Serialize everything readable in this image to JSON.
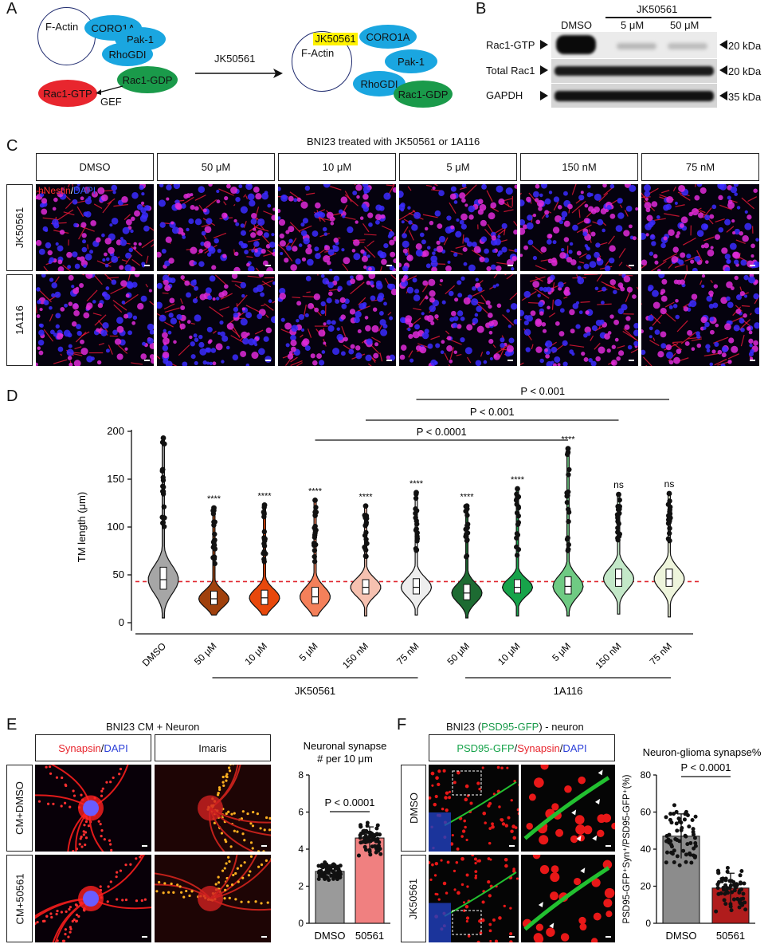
{
  "panelA": {
    "label": "A",
    "left": {
      "factin": "F-Actin",
      "coro1a": "CORO1A",
      "pak1": "Pak-1",
      "rhogdi": "RhoGDI",
      "rac1gdp": "Rac1-GDP",
      "rac1gtp": "Rac1-GTP",
      "gef": "GEF"
    },
    "arrow_label": "JK50561",
    "right": {
      "compound": "JK50561",
      "factin": "F-Actin",
      "coro1a": "CORO1A",
      "pak1": "Pak-1",
      "rhogdi": "RhoGDI",
      "rac1gdp": "Rac1-GDP"
    },
    "colors": {
      "blue": "#1aa6e0",
      "green": "#1a9a4a",
      "red": "#e8262e",
      "yellow": "#fff200",
      "navy": "#1e2a6e"
    }
  },
  "panelB": {
    "label": "B",
    "treatment": "JK50561",
    "lanes": [
      "DMSO",
      "5 μM",
      "50 μM"
    ],
    "rows": [
      {
        "name": "Rac1-GTP",
        "kda": "20 kDa"
      },
      {
        "name": "Total Rac1",
        "kda": "20 kDa"
      },
      {
        "name": "GAPDH",
        "kda": "35 kDa"
      }
    ]
  },
  "panelC": {
    "label": "C",
    "title": "BNI23 treated with JK50561 or 1A116",
    "columns": [
      "DMSO",
      "50 μM",
      "10 μM",
      "5 μM",
      "150 nM",
      "75 nM"
    ],
    "rows": [
      "JK50561",
      "1A116"
    ],
    "stain_red": "hNestin",
    "stain_sep": "/",
    "stain_blue": "DAPI"
  },
  "panelD": {
    "label": "D",
    "chart_data": {
      "type": "violin",
      "ylabel": "TM length (μm)",
      "ylim": [
        0,
        200
      ],
      "yticks": [
        0,
        50,
        100,
        150,
        200
      ],
      "threshold_line": 43,
      "categories": [
        "DMSO",
        "50 μM",
        "10 μM",
        "5 μM",
        "150 nM",
        "75 nM",
        "50 μM",
        "10 μM",
        "5 μM",
        "150 nM",
        "75 nM"
      ],
      "groups": [
        {
          "name": "JK50561",
          "from": 1,
          "to": 5
        },
        {
          "name": "1A116",
          "from": 6,
          "to": 10
        }
      ],
      "series": [
        {
          "category": "DMSO",
          "median": 45,
          "q1": 35,
          "q3": 58,
          "min": 5,
          "max": 193,
          "color": "#a6a6a6",
          "sig": ""
        },
        {
          "category": "50 μM",
          "median": 25,
          "q1": 19,
          "q3": 33,
          "min": 8,
          "max": 120,
          "color": "#a0410d",
          "sig": "****"
        },
        {
          "category": "10 μM",
          "median": 26,
          "q1": 19,
          "q3": 34,
          "min": 8,
          "max": 123,
          "color": "#e8480c",
          "sig": "****"
        },
        {
          "category": "5 μM",
          "median": 27,
          "q1": 20,
          "q3": 37,
          "min": 7,
          "max": 128,
          "color": "#f4805a",
          "sig": "****"
        },
        {
          "category": "150 nM",
          "median": 37,
          "q1": 30,
          "q3": 45,
          "min": 7,
          "max": 122,
          "color": "#f6c1b0",
          "sig": "****"
        },
        {
          "category": "75 nM",
          "median": 37,
          "q1": 30,
          "q3": 46,
          "min": 8,
          "max": 136,
          "color": "#eeeeee",
          "sig": "****"
        },
        {
          "category": "50 μM",
          "median": 31,
          "q1": 24,
          "q3": 40,
          "min": 5,
          "max": 122,
          "color": "#1d6b32",
          "sig": "****"
        },
        {
          "category": "10 μM",
          "median": 37,
          "q1": 31,
          "q3": 45,
          "min": 7,
          "max": 140,
          "color": "#17a34a",
          "sig": "****"
        },
        {
          "category": "5 μM",
          "median": 38,
          "q1": 30,
          "q3": 48,
          "min": 7,
          "max": 182,
          "color": "#6fca83",
          "sig": "****"
        },
        {
          "category": "150 nM",
          "median": 46,
          "q1": 38,
          "q3": 56,
          "min": 9,
          "max": 134,
          "color": "#c3e8c8",
          "sig": "ns"
        },
        {
          "category": "75 nM",
          "median": 46,
          "q1": 38,
          "q3": 56,
          "min": 6,
          "max": 135,
          "color": "#eef5dc",
          "sig": "ns"
        }
      ],
      "comparisons": [
        {
          "from": 3,
          "to": 8,
          "label": "P < 0.0001"
        },
        {
          "from": 4,
          "to": 9,
          "label": "P < 0.001"
        },
        {
          "from": 5,
          "to": 10,
          "label": "P < 0.001"
        }
      ]
    }
  },
  "panelE": {
    "label": "E",
    "title": "BNI23 CM + Neuron",
    "col1_red": "Synapsin",
    "col1_sep": "/",
    "col1_blue": "DAPI",
    "col2": "Imaris",
    "rows": [
      "CM+DMSO",
      "CM+50561"
    ],
    "chart_data": {
      "type": "bar",
      "title": "Neuronal synapse\n# per 10 μm",
      "categories": [
        "DMSO",
        "50561"
      ],
      "values": [
        2.8,
        4.6
      ],
      "errors": [
        0.35,
        0.6
      ],
      "ylim": [
        0,
        8
      ],
      "yticks": [
        0,
        2,
        4,
        6,
        8
      ],
      "colors": [
        "#9a9a9a",
        "#f08080"
      ],
      "pvalue": "P < 0.0001"
    }
  },
  "panelF": {
    "label": "F",
    "title_pre": "BNI23 (",
    "title_green": "PSD95-GFP",
    "title_post": ") - neuron",
    "stain_green": "PSD95-GFP",
    "stain_red": "Synapsin",
    "stain_blue": "DAPI",
    "rows": [
      "DMSO",
      "JK50561"
    ],
    "chart_data": {
      "type": "bar",
      "title": "Neuron-glioma synapse%",
      "ylabel": "PSD95-GFP⁺Syn⁺/PSD95-GFP⁺(%)",
      "categories": [
        "DMSO",
        "50561"
      ],
      "values": [
        47,
        19
      ],
      "errors": [
        12,
        8
      ],
      "ylim": [
        0,
        80
      ],
      "yticks": [
        0,
        20,
        40,
        60,
        80
      ],
      "colors": [
        "#8c8c8c",
        "#b01c1c"
      ],
      "pvalue": "P < 0.0001"
    }
  }
}
